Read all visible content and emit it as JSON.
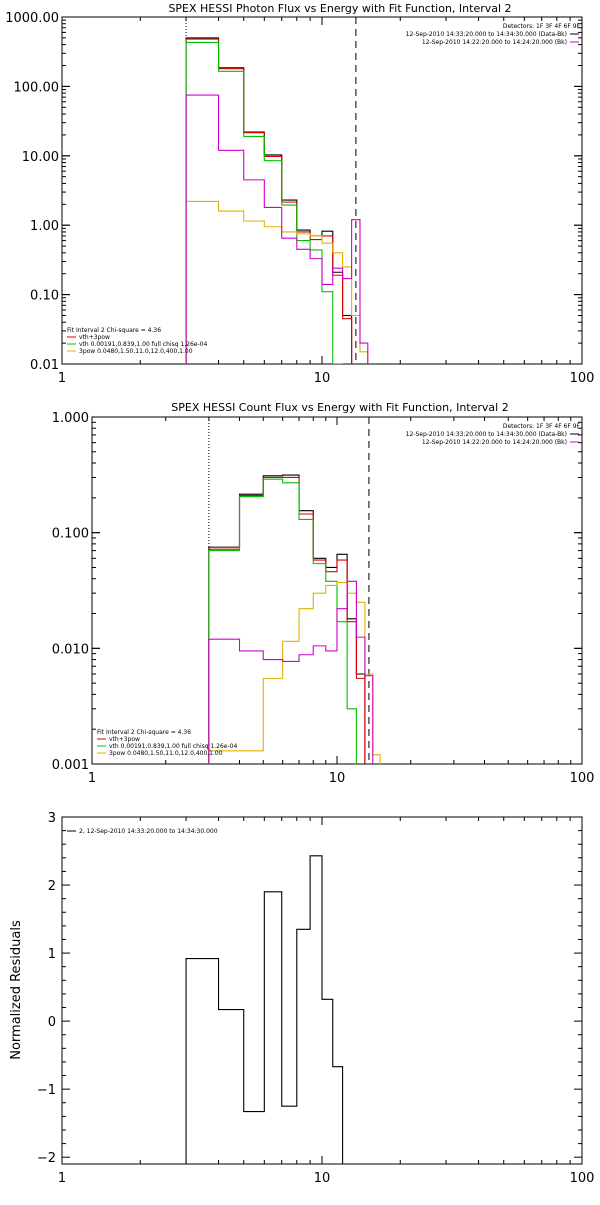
{
  "chart_data": [
    {
      "type": "line",
      "title": "SPEX HESSI Photon Flux vs Energy with Fit Function, Interval 2",
      "xlim": [
        1,
        100
      ],
      "ylim": [
        0.01,
        1000
      ],
      "xscale": "log",
      "yscale": "log",
      "x_tick_labels": [
        "1",
        "10",
        "100"
      ],
      "y_tick_labels": [
        "1000.00",
        "100.00",
        "10.00",
        "1.00",
        "0.10",
        "0.01"
      ],
      "y_tick_values": [
        1000,
        100,
        10,
        1,
        0.1,
        0.01
      ],
      "vlines": {
        "dotted": 3.0,
        "dashed": 13.5
      },
      "edges": [
        3,
        4,
        5,
        6,
        7,
        8,
        9,
        10,
        11,
        12,
        13,
        14,
        15
      ],
      "detectors": "Detectors: 1F 3F 4F 6F 9F",
      "intervals": [
        {
          "text": "12-Sep-2010 14:33:20.000 to 14:34:30.000 (Data-Bk)",
          "color": "#000000"
        },
        {
          "text": "12-Sep-2010 14:22:20.000 to 14:24:20.000 (Bk)",
          "color": "#d000d0"
        }
      ],
      "fit_info": "Fit Interval 2   Chi-square = 4.36",
      "legend": [
        {
          "text": "vth+3pow",
          "color": "#e00000"
        },
        {
          "text": "vth 0.00191,0.839,1.00   full chisq 1.26e-04",
          "color": "#00c000"
        },
        {
          "text": "3pow 0.0480,1.50,11.0,12.0,400,1.00",
          "color": "#e0b000"
        }
      ],
      "series": [
        {
          "color": "#000000",
          "values": [
            500,
            185,
            22,
            10.3,
            2.3,
            0.85,
            0.7,
            0.82,
            0.21,
            0.05
          ]
        },
        {
          "color": "#e00000",
          "values": [
            480,
            180,
            21.5,
            9.8,
            2.15,
            0.8,
            0.62,
            0.7,
            0.19,
            0.045
          ]
        },
        {
          "color": "#00c000",
          "values": [
            430,
            165,
            19,
            8.5,
            1.95,
            0.6,
            0.44,
            0.11,
            0.01,
            0.003
          ]
        },
        {
          "color": "#e0b000",
          "values": [
            2.2,
            1.6,
            1.15,
            0.95,
            0.8,
            0.75,
            0.7,
            0.55,
            0.4,
            0.25,
            0.05,
            0.015
          ]
        },
        {
          "color": "#d000d0",
          "values": [
            75,
            12,
            4.5,
            1.8,
            0.65,
            0.45,
            0.33,
            0.14,
            0.24,
            0.17,
            1.2,
            0.02
          ]
        }
      ]
    },
    {
      "type": "line",
      "title": "SPEX HESSI Count Flux vs Energy with Fit Function, Interval 2",
      "xlim": [
        1,
        100
      ],
      "ylim": [
        0.001,
        1
      ],
      "xscale": "log",
      "yscale": "log",
      "x_tick_labels": [
        "1",
        "10",
        "100"
      ],
      "y_tick_labels": [
        "1.000",
        "0.100",
        "0.010",
        "0.001"
      ],
      "y_tick_values": [
        1,
        0.1,
        0.01,
        0.001
      ],
      "vlines": {
        "dotted": 3.0,
        "dashed": 13.5
      },
      "edges": [
        3,
        4,
        5,
        6,
        7,
        8,
        9,
        10,
        11,
        12,
        13,
        14,
        15
      ],
      "detectors": "Detectors: 1F 3F 4F 6F 9F",
      "intervals": [
        {
          "text": "12-Sep-2010 14:33:20.000 to 14:34:30.000 (Data-Bk)",
          "color": "#000000"
        },
        {
          "text": "12-Sep-2010 14:22:20.000 to 14:24:20.000 (Bk)",
          "color": "#d000d0"
        }
      ],
      "fit_info": "Fit Interval 2   Chi-square = 4.36",
      "legend": [
        {
          "text": "vth+3pow",
          "color": "#e00000"
        },
        {
          "text": "vth 0.00191,0.839,1.00   full chisq 1.26e-04",
          "color": "#00c000"
        },
        {
          "text": "3pow 0.0480,1.50,11.0,12.0,400,1.00",
          "color": "#e0b000"
        }
      ],
      "series": [
        {
          "color": "#000000",
          "values": [
            0.075,
            0.215,
            0.31,
            0.315,
            0.155,
            0.06,
            0.05,
            0.065,
            0.018,
            0.006
          ]
        },
        {
          "color": "#e00000",
          "values": [
            0.072,
            0.21,
            0.3,
            0.3,
            0.145,
            0.058,
            0.046,
            0.058,
            0.017,
            0.0055
          ]
        },
        {
          "color": "#00c000",
          "values": [
            0.07,
            0.205,
            0.29,
            0.27,
            0.13,
            0.054,
            0.038,
            0.017,
            0.003,
            0.0008
          ]
        },
        {
          "color": "#e0b000",
          "values": [
            0.0013,
            0.0013,
            0.0055,
            0.0115,
            0.022,
            0.03,
            0.035,
            0.037,
            0.03,
            0.025,
            0.006,
            0.0012
          ]
        },
        {
          "color": "#d000d0",
          "values": [
            0.012,
            0.0095,
            0.008,
            0.0077,
            0.0088,
            0.0105,
            0.0095,
            0.022,
            0.038,
            0.0125,
            0.0058,
            0.0008
          ]
        }
      ]
    },
    {
      "type": "line",
      "title": "",
      "ylabel": "Normalized Residuals",
      "xlim": [
        1,
        100
      ],
      "ylim": [
        -2.1,
        3
      ],
      "xscale": "log",
      "x_tick_labels": [
        "1",
        "10",
        "100"
      ],
      "y_tick_labels": [
        "3",
        "2",
        "1",
        "0",
        "−1",
        "−2"
      ],
      "y_tick_values": [
        3,
        2,
        1,
        0,
        -1,
        -2
      ],
      "edges": [
        3,
        4,
        5,
        6,
        7,
        8,
        9,
        10,
        11,
        12,
        13,
        14,
        15
      ],
      "legend": [
        {
          "text": "2, 12-Sep-2010 14:33:20.000 to 14:34:30.000",
          "color": "#000000"
        }
      ],
      "series": [
        {
          "color": "#000000",
          "values": [
            0.92,
            0.17,
            -1.33,
            1.9,
            -1.25,
            1.35,
            2.43,
            0.32,
            -0.67
          ]
        }
      ]
    }
  ]
}
